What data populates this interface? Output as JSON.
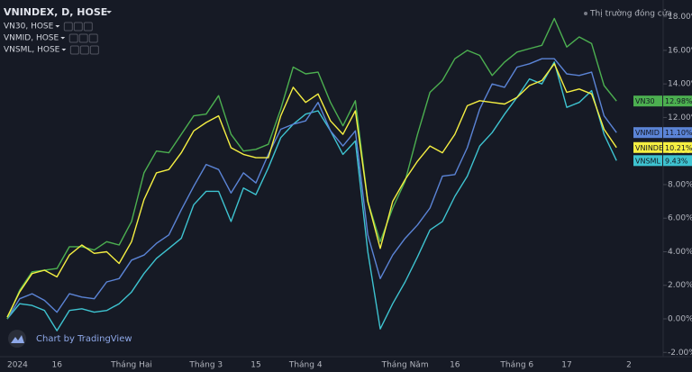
{
  "chart_data": {
    "type": "line",
    "title": "VNINDEX, D, HOSE",
    "status": "Thị trường đóng cửa",
    "watermark": "Chart by TradingView",
    "categories": [
      "2024",
      null,
      null,
      null,
      "16",
      null,
      null,
      null,
      null,
      null,
      "Tháng Hai",
      null,
      null,
      null,
      null,
      null,
      "Tháng 3",
      null,
      null,
      null,
      "15",
      null,
      null,
      null,
      "Tháng 4",
      null,
      null,
      null,
      null,
      null,
      null,
      null,
      "Tháng Năm",
      null,
      null,
      null,
      "16",
      null,
      null,
      null,
      null,
      "Tháng 6",
      null,
      null,
      null,
      "17",
      null,
      null,
      null,
      null,
      "2"
    ],
    "ylim": [
      -2.2,
      19.0
    ],
    "yticks": [
      {
        "value": -2,
        "label": "-2.00%"
      },
      {
        "value": 0,
        "label": "0.00%"
      },
      {
        "value": 2,
        "label": "2.00%"
      },
      {
        "value": 4,
        "label": "4.00%"
      },
      {
        "value": 6,
        "label": "6.00%"
      },
      {
        "value": 8,
        "label": "8.00%"
      },
      {
        "value": 10,
        "label": "10.00%"
      },
      {
        "value": 12,
        "label": "12.00%"
      },
      {
        "value": 14,
        "label": "14.00%"
      },
      {
        "value": 16,
        "label": "16.00%"
      },
      {
        "value": 18,
        "label": "18.00%"
      }
    ],
    "grid": false,
    "series": [
      {
        "name": "VN30",
        "legend": "VN30, HOSE",
        "color": "#4caf50",
        "last_value_label": "12.98%",
        "values": [
          0.0,
          1.7,
          2.8,
          2.9,
          3.0,
          4.3,
          4.3,
          4.1,
          4.6,
          4.4,
          5.8,
          8.7,
          10.0,
          9.9,
          11.0,
          12.1,
          12.2,
          13.3,
          11.0,
          10.0,
          10.1,
          10.4,
          12.5,
          15.0,
          14.6,
          14.7,
          12.9,
          11.5,
          13.0,
          7.0,
          4.6,
          6.6,
          8.2,
          11.0,
          13.5,
          14.2,
          15.5,
          16.0,
          15.7,
          14.5,
          15.3,
          15.9,
          16.1,
          16.3,
          17.9,
          16.2,
          16.8,
          16.4,
          13.9,
          12.98,
          null
        ]
      },
      {
        "name": "VNMID",
        "legend": "VNMID, HOSE",
        "color": "#5b84d6",
        "last_value_label": "11.10%",
        "values": [
          0.0,
          1.2,
          1.5,
          1.1,
          0.4,
          1.5,
          1.3,
          1.2,
          2.2,
          2.4,
          3.5,
          3.8,
          4.5,
          5.0,
          6.5,
          7.9,
          9.2,
          8.9,
          7.5,
          8.7,
          8.1,
          9.8,
          11.3,
          11.6,
          11.8,
          12.9,
          11.2,
          10.3,
          11.2,
          5.0,
          2.4,
          3.8,
          4.8,
          5.6,
          6.6,
          8.5,
          8.6,
          10.2,
          12.5,
          14.0,
          13.8,
          15.0,
          15.2,
          15.5,
          15.5,
          14.6,
          14.5,
          14.7,
          12.1,
          11.1,
          null
        ]
      },
      {
        "name": "VNINDEX",
        "color": "#f5ef42",
        "last_value_label": "10.21%",
        "values": [
          0.1,
          1.6,
          2.7,
          2.9,
          2.5,
          3.8,
          4.4,
          3.9,
          4.0,
          3.3,
          4.6,
          7.1,
          8.7,
          8.9,
          9.9,
          11.2,
          11.7,
          12.1,
          10.2,
          9.8,
          9.6,
          9.6,
          12.1,
          13.8,
          12.9,
          13.4,
          11.8,
          11.0,
          12.4,
          7.0,
          4.2,
          7.0,
          8.3,
          9.4,
          10.3,
          9.9,
          11.0,
          12.7,
          13.0,
          12.9,
          12.8,
          13.2,
          13.9,
          14.2,
          15.2,
          13.5,
          13.7,
          13.4,
          11.3,
          10.21,
          null
        ]
      },
      {
        "name": "VNSML",
        "legend": "VNSML, HOSE",
        "color": "#3ec3d0",
        "last_value_label": "9.43%",
        "values": [
          0.0,
          0.9,
          0.8,
          0.5,
          -0.7,
          0.5,
          0.6,
          0.4,
          0.5,
          0.9,
          1.6,
          2.7,
          3.6,
          4.2,
          4.8,
          6.8,
          7.6,
          7.6,
          5.8,
          7.8,
          7.4,
          9.0,
          10.8,
          11.6,
          12.2,
          12.4,
          11.2,
          9.8,
          10.6,
          4.0,
          -0.6,
          0.9,
          2.2,
          3.7,
          5.3,
          5.8,
          7.3,
          8.5,
          10.3,
          11.1,
          12.2,
          13.2,
          14.3,
          14.0,
          15.3,
          12.6,
          12.9,
          13.6,
          11.0,
          9.43,
          null
        ]
      }
    ]
  }
}
